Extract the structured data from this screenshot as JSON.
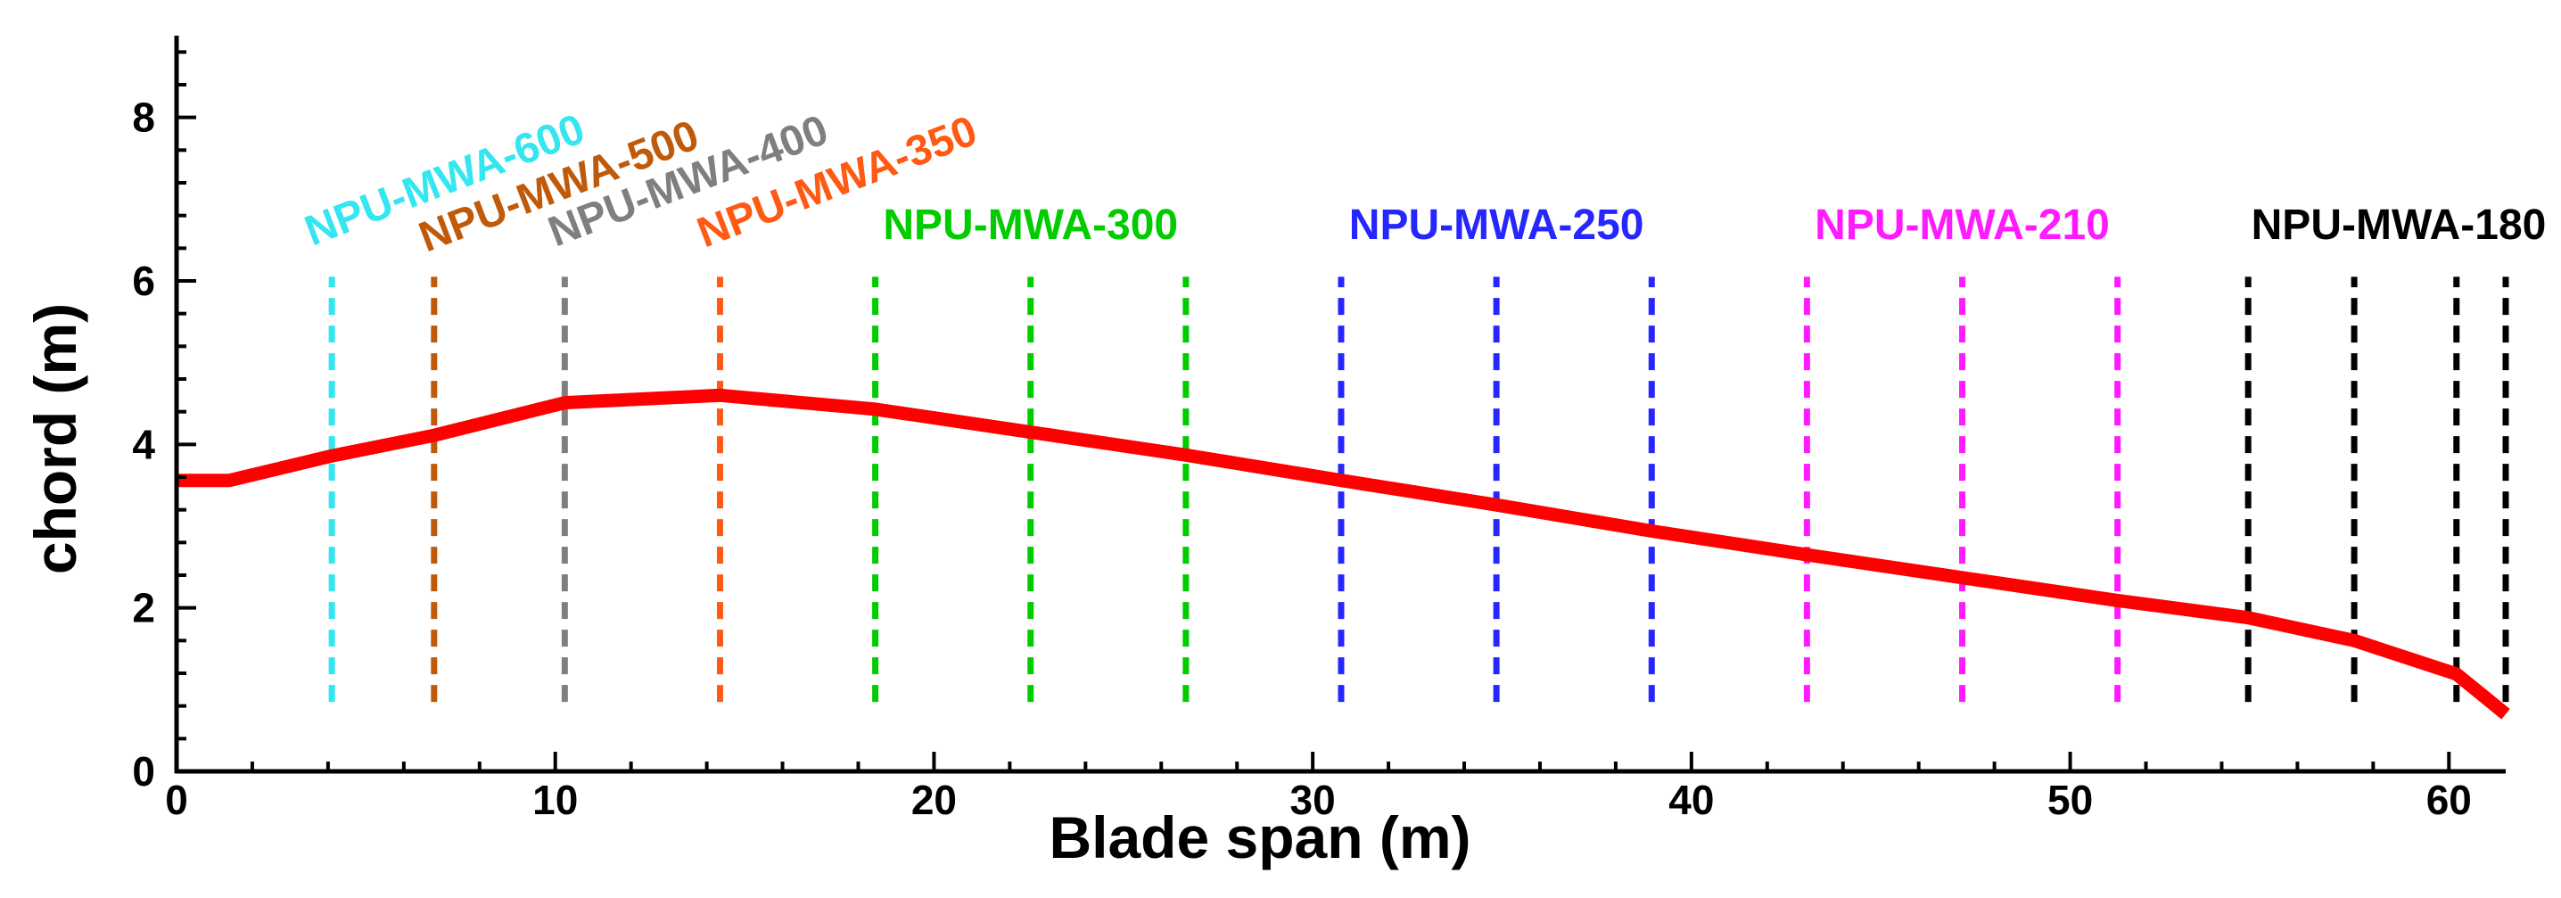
{
  "chart_data": {
    "type": "line",
    "title": "",
    "xlabel": "Blade span (m)",
    "ylabel": "chord (m)",
    "xlim": [
      0,
      61.5
    ],
    "ylim": [
      0,
      9
    ],
    "xticks": [
      0,
      10,
      20,
      30,
      40,
      50,
      60
    ],
    "xtick_labels": [
      "0",
      "10",
      "20",
      "30",
      "40",
      "50",
      "60"
    ],
    "yticks": [
      0,
      2,
      4,
      6,
      8
    ],
    "ytick_labels": [
      "0",
      "2",
      "4",
      "6",
      "8"
    ],
    "grid": false,
    "series": [
      {
        "name": "chord",
        "color": "#ff0000",
        "x": [
          0,
          1.4,
          4.1,
          6.8,
          10.25,
          14.35,
          18.45,
          22.55,
          26.65,
          30.75,
          34.85,
          38.95,
          43.05,
          47.15,
          51.25,
          54.7,
          57.5,
          60.2,
          61.5
        ],
        "y": [
          3.56,
          3.56,
          3.86,
          4.11,
          4.51,
          4.6,
          4.43,
          4.15,
          3.87,
          3.56,
          3.26,
          2.94,
          2.65,
          2.37,
          2.09,
          1.88,
          1.6,
          1.19,
          0.7
        ]
      }
    ],
    "airfoil_sections": [
      {
        "label": "NPU-MWA-600",
        "color": "#33e6f0",
        "positions": [
          4.1
        ],
        "rotated": true
      },
      {
        "label": "NPU-MWA-500",
        "color": "#bf5a0a",
        "positions": [
          6.8
        ],
        "rotated": true
      },
      {
        "label": "NPU-MWA-400",
        "color": "#7f7f7f",
        "positions": [
          10.25
        ],
        "rotated": true
      },
      {
        "label": "NPU-MWA-350",
        "color": "#ff5a14",
        "positions": [
          14.35
        ],
        "rotated": true
      },
      {
        "label": "NPU-MWA-300",
        "color": "#00cc00",
        "positions": [
          18.45,
          22.55,
          26.65
        ],
        "rotated": false
      },
      {
        "label": "NPU-MWA-250",
        "color": "#2626ff",
        "positions": [
          30.75,
          34.85,
          38.95
        ],
        "rotated": false
      },
      {
        "label": "NPU-MWA-210",
        "color": "#ff1aff",
        "positions": [
          43.05,
          47.15,
          51.25
        ],
        "rotated": false
      },
      {
        "label": "NPU-MWA-180",
        "color": "#000000",
        "positions": [
          54.7,
          57.5,
          60.2,
          61.5
        ],
        "rotated": false
      }
    ],
    "section_line_y_range": [
      0.85,
      6.05
    ]
  }
}
